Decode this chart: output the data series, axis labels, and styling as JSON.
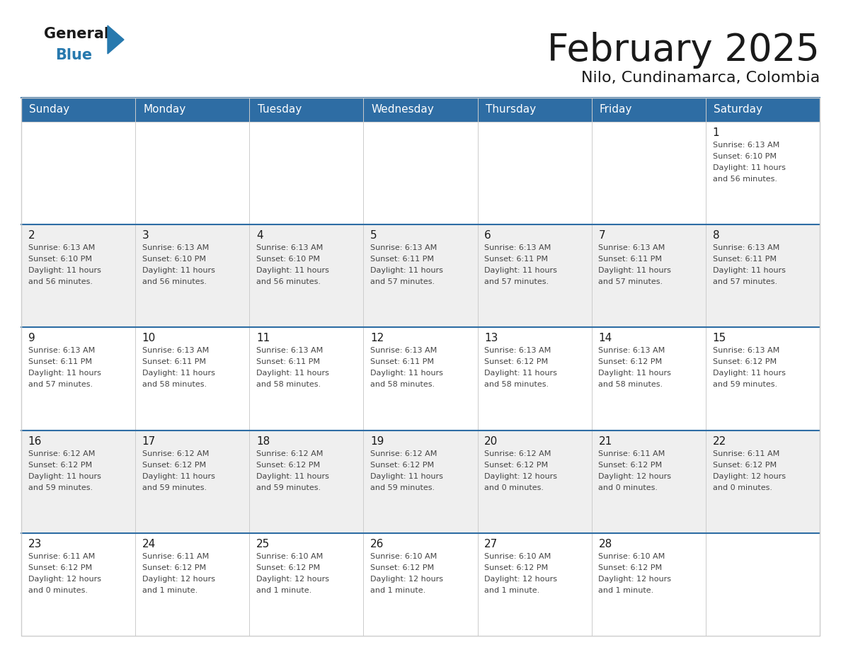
{
  "title": "February 2025",
  "subtitle": "Nilo, Cundinamarca, Colombia",
  "header_color": "#2E6DA4",
  "header_text_color": "#FFFFFF",
  "bg_color": "#FFFFFF",
  "cell_bg_even": "#EFEFEF",
  "cell_bg_odd": "#FFFFFF",
  "day_headers": [
    "Sunday",
    "Monday",
    "Tuesday",
    "Wednesday",
    "Thursday",
    "Friday",
    "Saturday"
  ],
  "days": [
    {
      "day": 1,
      "col": 6,
      "row": 0,
      "sunrise": "6:13 AM",
      "sunset": "6:10 PM",
      "daylight_hours": 11,
      "daylight_minutes": 56
    },
    {
      "day": 2,
      "col": 0,
      "row": 1,
      "sunrise": "6:13 AM",
      "sunset": "6:10 PM",
      "daylight_hours": 11,
      "daylight_minutes": 56
    },
    {
      "day": 3,
      "col": 1,
      "row": 1,
      "sunrise": "6:13 AM",
      "sunset": "6:10 PM",
      "daylight_hours": 11,
      "daylight_minutes": 56
    },
    {
      "day": 4,
      "col": 2,
      "row": 1,
      "sunrise": "6:13 AM",
      "sunset": "6:10 PM",
      "daylight_hours": 11,
      "daylight_minutes": 56
    },
    {
      "day": 5,
      "col": 3,
      "row": 1,
      "sunrise": "6:13 AM",
      "sunset": "6:11 PM",
      "daylight_hours": 11,
      "daylight_minutes": 57
    },
    {
      "day": 6,
      "col": 4,
      "row": 1,
      "sunrise": "6:13 AM",
      "sunset": "6:11 PM",
      "daylight_hours": 11,
      "daylight_minutes": 57
    },
    {
      "day": 7,
      "col": 5,
      "row": 1,
      "sunrise": "6:13 AM",
      "sunset": "6:11 PM",
      "daylight_hours": 11,
      "daylight_minutes": 57
    },
    {
      "day": 8,
      "col": 6,
      "row": 1,
      "sunrise": "6:13 AM",
      "sunset": "6:11 PM",
      "daylight_hours": 11,
      "daylight_minutes": 57
    },
    {
      "day": 9,
      "col": 0,
      "row": 2,
      "sunrise": "6:13 AM",
      "sunset": "6:11 PM",
      "daylight_hours": 11,
      "daylight_minutes": 57
    },
    {
      "day": 10,
      "col": 1,
      "row": 2,
      "sunrise": "6:13 AM",
      "sunset": "6:11 PM",
      "daylight_hours": 11,
      "daylight_minutes": 58
    },
    {
      "day": 11,
      "col": 2,
      "row": 2,
      "sunrise": "6:13 AM",
      "sunset": "6:11 PM",
      "daylight_hours": 11,
      "daylight_minutes": 58
    },
    {
      "day": 12,
      "col": 3,
      "row": 2,
      "sunrise": "6:13 AM",
      "sunset": "6:11 PM",
      "daylight_hours": 11,
      "daylight_minutes": 58
    },
    {
      "day": 13,
      "col": 4,
      "row": 2,
      "sunrise": "6:13 AM",
      "sunset": "6:12 PM",
      "daylight_hours": 11,
      "daylight_minutes": 58
    },
    {
      "day": 14,
      "col": 5,
      "row": 2,
      "sunrise": "6:13 AM",
      "sunset": "6:12 PM",
      "daylight_hours": 11,
      "daylight_minutes": 58
    },
    {
      "day": 15,
      "col": 6,
      "row": 2,
      "sunrise": "6:13 AM",
      "sunset": "6:12 PM",
      "daylight_hours": 11,
      "daylight_minutes": 59
    },
    {
      "day": 16,
      "col": 0,
      "row": 3,
      "sunrise": "6:12 AM",
      "sunset": "6:12 PM",
      "daylight_hours": 11,
      "daylight_minutes": 59
    },
    {
      "day": 17,
      "col": 1,
      "row": 3,
      "sunrise": "6:12 AM",
      "sunset": "6:12 PM",
      "daylight_hours": 11,
      "daylight_minutes": 59
    },
    {
      "day": 18,
      "col": 2,
      "row": 3,
      "sunrise": "6:12 AM",
      "sunset": "6:12 PM",
      "daylight_hours": 11,
      "daylight_minutes": 59
    },
    {
      "day": 19,
      "col": 3,
      "row": 3,
      "sunrise": "6:12 AM",
      "sunset": "6:12 PM",
      "daylight_hours": 11,
      "daylight_minutes": 59
    },
    {
      "day": 20,
      "col": 4,
      "row": 3,
      "sunrise": "6:12 AM",
      "sunset": "6:12 PM",
      "daylight_hours": 12,
      "daylight_minutes": 0
    },
    {
      "day": 21,
      "col": 5,
      "row": 3,
      "sunrise": "6:11 AM",
      "sunset": "6:12 PM",
      "daylight_hours": 12,
      "daylight_minutes": 0
    },
    {
      "day": 22,
      "col": 6,
      "row": 3,
      "sunrise": "6:11 AM",
      "sunset": "6:12 PM",
      "daylight_hours": 12,
      "daylight_minutes": 0
    },
    {
      "day": 23,
      "col": 0,
      "row": 4,
      "sunrise": "6:11 AM",
      "sunset": "6:12 PM",
      "daylight_hours": 12,
      "daylight_minutes": 0
    },
    {
      "day": 24,
      "col": 1,
      "row": 4,
      "sunrise": "6:11 AM",
      "sunset": "6:12 PM",
      "daylight_hours": 12,
      "daylight_minutes": 1
    },
    {
      "day": 25,
      "col": 2,
      "row": 4,
      "sunrise": "6:10 AM",
      "sunset": "6:12 PM",
      "daylight_hours": 12,
      "daylight_minutes": 1
    },
    {
      "day": 26,
      "col": 3,
      "row": 4,
      "sunrise": "6:10 AM",
      "sunset": "6:12 PM",
      "daylight_hours": 12,
      "daylight_minutes": 1
    },
    {
      "day": 27,
      "col": 4,
      "row": 4,
      "sunrise": "6:10 AM",
      "sunset": "6:12 PM",
      "daylight_hours": 12,
      "daylight_minutes": 1
    },
    {
      "day": 28,
      "col": 5,
      "row": 4,
      "sunrise": "6:10 AM",
      "sunset": "6:12 PM",
      "daylight_hours": 12,
      "daylight_minutes": 1
    }
  ],
  "n_rows": 5,
  "n_cols": 7
}
